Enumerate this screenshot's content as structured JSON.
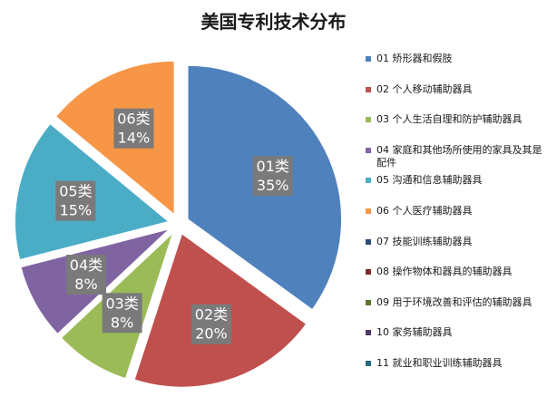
{
  "chart_data": {
    "type": "pie",
    "title": "美国专利技术分布",
    "slices": [
      {
        "name": "01类",
        "value": 35,
        "pct_label": "35%",
        "color": "#4f81bd",
        "explode": true
      },
      {
        "name": "02类",
        "value": 20,
        "pct_label": "20%",
        "color": "#c0504d",
        "explode": true
      },
      {
        "name": "03类",
        "value": 8,
        "pct_label": "8%",
        "color": "#9bbb59",
        "explode": true
      },
      {
        "name": "04类",
        "value": 8,
        "pct_label": "8%",
        "color": "#8064a2",
        "explode": true
      },
      {
        "name": "05类",
        "value": 15,
        "pct_label": "15%",
        "color": "#4bacc6",
        "explode": true
      },
      {
        "name": "06类",
        "value": 14,
        "pct_label": "14%",
        "color": "#f79646",
        "explode": true
      }
    ],
    "legend": {
      "position": "right",
      "entries": [
        {
          "label": "01 矫形器和假肢",
          "color": "#4f81bd"
        },
        {
          "label": "02 个人移动辅助器具",
          "color": "#c0504d"
        },
        {
          "label": "03 个人生活自理和防护辅助器具",
          "color": "#9bbb59"
        },
        {
          "label": "04 家庭和其他场所使用的家具及其是配件",
          "color": "#8064a2"
        },
        {
          "label": "05 沟通和信息辅助器具",
          "color": "#4bacc6"
        },
        {
          "label": "06 个人医疗辅助器具",
          "color": "#f79646"
        },
        {
          "label": "07 技能训练辅助器具",
          "color": "#2c4d75"
        },
        {
          "label": "08 操作物体和器具的辅助器具",
          "color": "#772c2a"
        },
        {
          "label": "09 用于环境改善和评估的辅助器具",
          "color": "#5f7530"
        },
        {
          "label": "10 家务辅助器具",
          "color": "#4d3b62"
        },
        {
          "label": "11 就业和职业训练辅助器具",
          "color": "#276a7c"
        }
      ]
    }
  }
}
